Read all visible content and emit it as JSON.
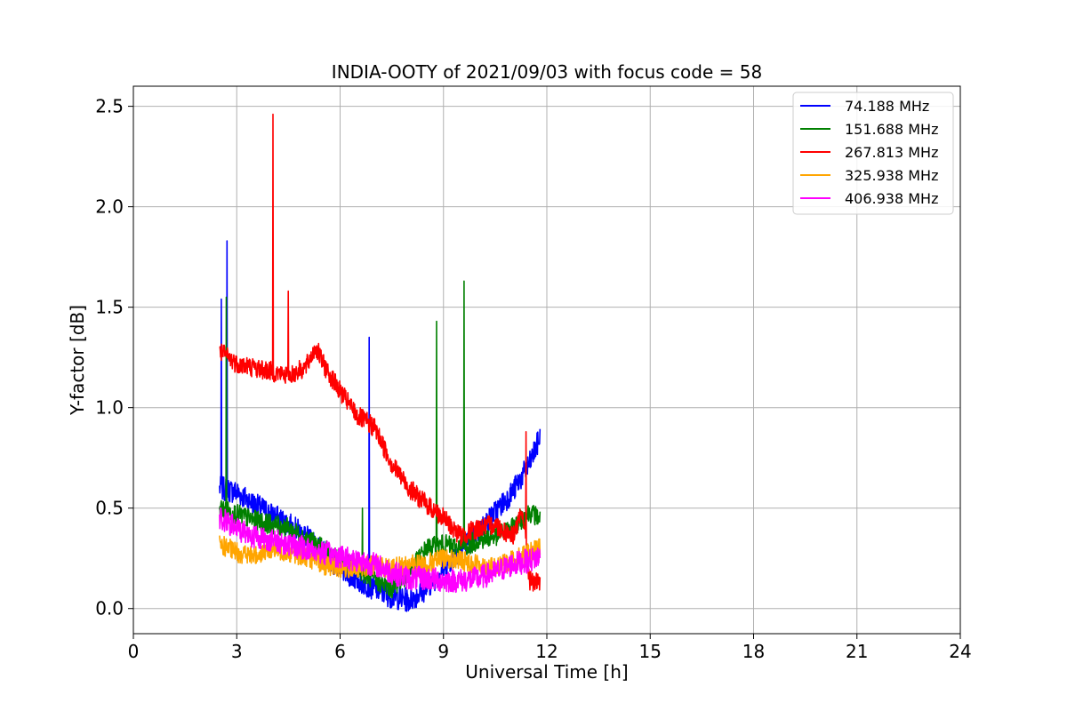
{
  "chart_data": {
    "type": "line",
    "title": "INDIA-OOTY of 2021/09/03 with focus code = 58",
    "xlabel": "Universal Time [h]",
    "ylabel": "Y-factor [dB]",
    "xlim": [
      0,
      24
    ],
    "ylim": [
      -0.125,
      2.6
    ],
    "xticks": [
      0,
      3,
      6,
      9,
      12,
      15,
      18,
      21,
      24
    ],
    "xtick_labels": [
      "0",
      "3",
      "6",
      "9",
      "12",
      "15",
      "18",
      "21",
      "24"
    ],
    "yticks": [
      0.0,
      0.5,
      1.0,
      1.5,
      2.0,
      2.5
    ],
    "ytick_labels": [
      "0.0",
      "0.5",
      "1.0",
      "1.5",
      "2.0",
      "2.5"
    ],
    "grid": true,
    "legend_position": "top-right",
    "series": [
      {
        "name": " 74.188 MHz",
        "color": "#0000ff",
        "x": [
          2.5,
          3.0,
          3.5,
          4.0,
          4.5,
          5.0,
          5.5,
          6.0,
          6.5,
          7.0,
          7.5,
          8.0,
          8.5,
          9.0,
          9.5,
          10.0,
          10.5,
          11.0,
          11.5,
          11.8
        ],
        "y": [
          0.6,
          0.58,
          0.52,
          0.47,
          0.42,
          0.36,
          0.28,
          0.2,
          0.14,
          0.1,
          0.06,
          0.04,
          0.1,
          0.2,
          0.3,
          0.38,
          0.48,
          0.58,
          0.72,
          0.85
        ],
        "spikes": [
          [
            2.72,
            1.83
          ],
          [
            2.55,
            1.54
          ],
          [
            6.85,
            1.35
          ]
        ]
      },
      {
        "name": "151.688 MHz",
        "color": "#008000",
        "x": [
          2.5,
          3.0,
          3.5,
          4.0,
          4.5,
          5.0,
          5.5,
          6.0,
          6.5,
          7.0,
          7.5,
          8.0,
          8.5,
          9.0,
          9.5,
          10.0,
          10.5,
          11.0,
          11.5,
          11.8
        ],
        "y": [
          0.5,
          0.47,
          0.44,
          0.42,
          0.4,
          0.35,
          0.3,
          0.24,
          0.2,
          0.14,
          0.1,
          0.18,
          0.3,
          0.32,
          0.3,
          0.34,
          0.36,
          0.4,
          0.48,
          0.45
        ],
        "spikes": [
          [
            2.7,
            1.55
          ],
          [
            8.8,
            1.43
          ],
          [
            9.6,
            1.63
          ],
          [
            6.65,
            0.5
          ]
        ]
      },
      {
        "name": "267.813 MHz",
        "color": "#ff0000",
        "x": [
          2.5,
          3.0,
          3.5,
          4.0,
          4.5,
          5.0,
          5.3,
          5.5,
          6.0,
          6.5,
          7.0,
          7.5,
          8.0,
          8.5,
          9.0,
          9.5,
          10.0,
          10.5,
          11.0,
          11.3,
          11.5,
          11.8
        ],
        "y": [
          1.28,
          1.22,
          1.2,
          1.18,
          1.16,
          1.2,
          1.3,
          1.22,
          1.08,
          0.96,
          0.9,
          0.72,
          0.6,
          0.52,
          0.45,
          0.36,
          0.4,
          0.42,
          0.36,
          0.48,
          0.14,
          0.12
        ],
        "spikes": [
          [
            4.05,
            2.46
          ],
          [
            4.5,
            1.58
          ],
          [
            11.4,
            0.88
          ]
        ]
      },
      {
        "name": "325.938 MHz",
        "color": "#ffa500",
        "x": [
          2.5,
          3.0,
          3.5,
          4.0,
          4.5,
          5.0,
          5.5,
          6.0,
          6.5,
          7.0,
          7.5,
          8.0,
          8.5,
          9.0,
          9.5,
          10.0,
          10.5,
          11.0,
          11.5,
          11.8
        ],
        "y": [
          0.32,
          0.28,
          0.26,
          0.3,
          0.28,
          0.26,
          0.22,
          0.2,
          0.2,
          0.22,
          0.2,
          0.22,
          0.22,
          0.25,
          0.24,
          0.22,
          0.2,
          0.24,
          0.28,
          0.3
        ],
        "spikes": []
      },
      {
        "name": "406.938 MHz",
        "color": "#ff00ff",
        "x": [
          2.5,
          3.0,
          3.5,
          4.0,
          4.5,
          5.0,
          5.5,
          6.0,
          6.5,
          7.0,
          7.5,
          8.0,
          8.5,
          9.0,
          9.5,
          10.0,
          10.5,
          11.0,
          11.5,
          11.8
        ],
        "y": [
          0.45,
          0.4,
          0.36,
          0.34,
          0.32,
          0.3,
          0.28,
          0.26,
          0.24,
          0.22,
          0.18,
          0.15,
          0.15,
          0.14,
          0.14,
          0.15,
          0.18,
          0.22,
          0.24,
          0.26
        ],
        "spikes": []
      }
    ]
  }
}
